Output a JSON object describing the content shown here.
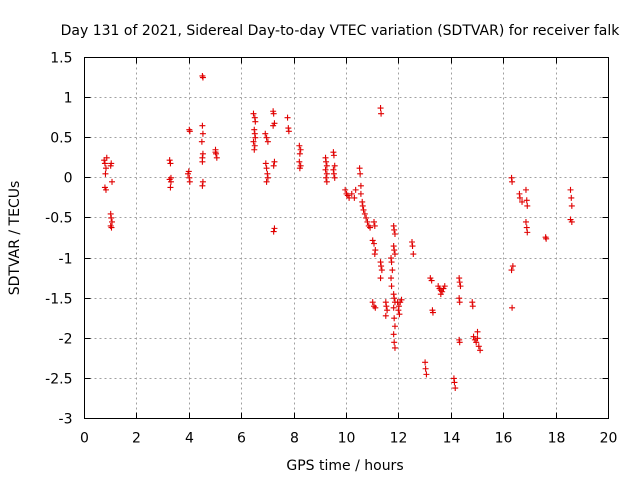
{
  "chart_data": {
    "type": "scatter",
    "title": "Day 131 of 2021, Sidereal Day-to-day VTEC variation (SDTVAR) for receiver falk",
    "xlabel": "GPS time / hours",
    "ylabel": "SDTVAR / TECUs",
    "xlim": [
      0,
      20
    ],
    "ylim": [
      -3,
      1.5
    ],
    "grid": true,
    "marker": "+",
    "marker_color": "#e00000",
    "xticks": [
      0,
      2,
      4,
      6,
      8,
      10,
      12,
      14,
      16,
      18,
      20
    ],
    "xtick_labels": [
      "0",
      "2",
      "4",
      "6",
      "8",
      "10",
      "12",
      "14",
      "16",
      "18",
      "20"
    ],
    "yticks": [
      -3,
      -2.5,
      -2,
      -1.5,
      -1,
      -0.5,
      0,
      0.5,
      1,
      1.5
    ],
    "ytick_labels": [
      "-3",
      "-2.5",
      "-2",
      "-1.5",
      "-1",
      "-0.5",
      "0",
      "0.5",
      "1",
      "1.5"
    ],
    "points": [
      [
        0.75,
        0.22
      ],
      [
        0.78,
        0.18
      ],
      [
        0.8,
        0.05
      ],
      [
        0.82,
        0.12
      ],
      [
        0.78,
        -0.12
      ],
      [
        0.82,
        -0.15
      ],
      [
        0.85,
        0.25
      ],
      [
        1.0,
        0.15
      ],
      [
        1.02,
        0.18
      ],
      [
        1.05,
        -0.05
      ],
      [
        1.0,
        -0.45
      ],
      [
        1.02,
        -0.5
      ],
      [
        1.05,
        -0.55
      ],
      [
        1.0,
        -0.6
      ],
      [
        1.03,
        -0.62
      ],
      [
        3.25,
        0.22
      ],
      [
        3.28,
        0.18
      ],
      [
        3.3,
        0.0
      ],
      [
        3.25,
        -0.02
      ],
      [
        3.3,
        -0.05
      ],
      [
        3.28,
        -0.12
      ],
      [
        3.95,
        0.05
      ],
      [
        4.0,
        0.0
      ],
      [
        4.02,
        -0.05
      ],
      [
        3.98,
        0.08
      ],
      [
        4.0,
        0.6
      ],
      [
        4.02,
        0.58
      ],
      [
        4.5,
        0.65
      ],
      [
        4.52,
        0.55
      ],
      [
        4.48,
        0.45
      ],
      [
        4.5,
        0.25
      ],
      [
        4.52,
        0.3
      ],
      [
        4.5,
        0.2
      ],
      [
        4.52,
        -0.05
      ],
      [
        4.5,
        -0.1
      ],
      [
        4.5,
        1.27
      ],
      [
        4.52,
        1.25
      ],
      [
        5.0,
        0.35
      ],
      [
        5.02,
        0.3
      ],
      [
        5.0,
        0.32
      ],
      [
        5.05,
        0.25
      ],
      [
        6.45,
        0.8
      ],
      [
        6.5,
        0.75
      ],
      [
        6.52,
        0.7
      ],
      [
        6.48,
        0.6
      ],
      [
        6.5,
        0.55
      ],
      [
        6.52,
        0.5
      ],
      [
        6.45,
        0.45
      ],
      [
        6.5,
        0.4
      ],
      [
        6.48,
        0.35
      ],
      [
        6.9,
        0.55
      ],
      [
        6.95,
        0.5
      ],
      [
        7.0,
        0.45
      ],
      [
        6.92,
        0.18
      ],
      [
        6.95,
        0.12
      ],
      [
        6.98,
        0.05
      ],
      [
        7.0,
        0.0
      ],
      [
        6.95,
        -0.05
      ],
      [
        7.2,
        0.83
      ],
      [
        7.22,
        0.8
      ],
      [
        7.25,
        0.68
      ],
      [
        7.2,
        0.65
      ],
      [
        7.25,
        0.2
      ],
      [
        7.22,
        0.15
      ],
      [
        7.25,
        -0.63
      ],
      [
        7.22,
        -0.67
      ],
      [
        7.75,
        0.75
      ],
      [
        7.78,
        0.62
      ],
      [
        7.8,
        0.58
      ],
      [
        8.2,
        0.4
      ],
      [
        8.25,
        0.35
      ],
      [
        8.22,
        0.3
      ],
      [
        8.2,
        0.2
      ],
      [
        8.25,
        0.15
      ],
      [
        8.22,
        0.12
      ],
      [
        9.2,
        0.25
      ],
      [
        9.22,
        0.2
      ],
      [
        9.25,
        0.15
      ],
      [
        9.2,
        0.1
      ],
      [
        9.25,
        0.05
      ],
      [
        9.22,
        0.0
      ],
      [
        9.25,
        -0.05
      ],
      [
        9.5,
        0.32
      ],
      [
        9.52,
        0.28
      ],
      [
        9.55,
        0.15
      ],
      [
        9.5,
        0.1
      ],
      [
        9.52,
        0.05
      ],
      [
        9.55,
        0.0
      ],
      [
        9.95,
        -0.15
      ],
      [
        10.0,
        -0.2
      ],
      [
        10.05,
        -0.22
      ],
      [
        10.1,
        -0.25
      ],
      [
        10.2,
        -0.2
      ],
      [
        10.3,
        -0.25
      ],
      [
        10.35,
        -0.15
      ],
      [
        10.5,
        0.12
      ],
      [
        10.52,
        0.05
      ],
      [
        10.55,
        -0.1
      ],
      [
        10.55,
        -0.2
      ],
      [
        10.6,
        -0.3
      ],
      [
        10.62,
        -0.35
      ],
      [
        10.65,
        -0.4
      ],
      [
        10.7,
        -0.45
      ],
      [
        10.75,
        -0.5
      ],
      [
        10.8,
        -0.55
      ],
      [
        10.85,
        -0.6
      ],
      [
        10.9,
        -0.62
      ],
      [
        11.05,
        -0.55
      ],
      [
        11.08,
        -0.6
      ],
      [
        11.0,
        -0.78
      ],
      [
        11.05,
        -0.82
      ],
      [
        11.1,
        -0.9
      ],
      [
        11.08,
        -0.95
      ],
      [
        11.0,
        -1.55
      ],
      [
        11.05,
        -1.6
      ],
      [
        11.1,
        -1.62
      ],
      [
        11.3,
        0.87
      ],
      [
        11.32,
        0.8
      ],
      [
        11.3,
        -1.05
      ],
      [
        11.32,
        -1.1
      ],
      [
        11.35,
        -1.15
      ],
      [
        11.3,
        -1.25
      ],
      [
        11.5,
        -1.55
      ],
      [
        11.52,
        -1.6
      ],
      [
        11.55,
        -1.65
      ],
      [
        11.5,
        -1.72
      ],
      [
        11.7,
        -1.0
      ],
      [
        11.72,
        -1.05
      ],
      [
        11.75,
        -1.15
      ],
      [
        11.7,
        -1.25
      ],
      [
        11.72,
        -1.35
      ],
      [
        11.8,
        -0.6
      ],
      [
        11.82,
        -0.65
      ],
      [
        11.85,
        -0.7
      ],
      [
        11.8,
        -0.85
      ],
      [
        11.82,
        -0.9
      ],
      [
        11.85,
        -0.95
      ],
      [
        11.8,
        -1.45
      ],
      [
        11.82,
        -1.5
      ],
      [
        11.85,
        -1.55
      ],
      [
        11.8,
        -1.62
      ],
      [
        11.82,
        -1.75
      ],
      [
        11.85,
        -1.85
      ],
      [
        11.8,
        -1.95
      ],
      [
        11.82,
        -2.05
      ],
      [
        11.85,
        -2.12
      ],
      [
        11.95,
        -1.55
      ],
      [
        12.0,
        -1.6
      ],
      [
        12.05,
        -1.55
      ],
      [
        12.1,
        -1.52
      ],
      [
        11.98,
        -1.65
      ],
      [
        12.02,
        -1.7
      ],
      [
        12.5,
        -0.8
      ],
      [
        12.52,
        -0.85
      ],
      [
        12.55,
        -0.95
      ],
      [
        13.0,
        -2.3
      ],
      [
        13.02,
        -2.38
      ],
      [
        13.05,
        -2.45
      ],
      [
        13.2,
        -1.25
      ],
      [
        13.25,
        -1.28
      ],
      [
        13.28,
        -1.65
      ],
      [
        13.3,
        -1.68
      ],
      [
        13.5,
        -1.35
      ],
      [
        13.55,
        -1.38
      ],
      [
        13.6,
        -1.4
      ],
      [
        13.65,
        -1.42
      ],
      [
        13.7,
        -1.38
      ],
      [
        13.75,
        -1.35
      ],
      [
        13.6,
        -1.45
      ],
      [
        14.1,
        -2.5
      ],
      [
        14.12,
        -2.55
      ],
      [
        14.15,
        -2.62
      ],
      [
        14.3,
        -1.25
      ],
      [
        14.32,
        -1.3
      ],
      [
        14.35,
        -1.35
      ],
      [
        14.3,
        -1.5
      ],
      [
        14.32,
        -1.55
      ],
      [
        14.3,
        -2.02
      ],
      [
        14.32,
        -2.05
      ],
      [
        14.8,
        -1.55
      ],
      [
        14.82,
        -1.6
      ],
      [
        14.85,
        -1.98
      ],
      [
        14.9,
        -2.02
      ],
      [
        14.95,
        -2.05
      ],
      [
        15.0,
        -2.0
      ],
      [
        15.05,
        -2.1
      ],
      [
        15.1,
        -2.15
      ],
      [
        15.0,
        -1.92
      ],
      [
        16.3,
        0.0
      ],
      [
        16.32,
        -0.05
      ],
      [
        16.35,
        -1.1
      ],
      [
        16.3,
        -1.15
      ],
      [
        16.32,
        -1.62
      ],
      [
        16.6,
        -0.2
      ],
      [
        16.62,
        -0.25
      ],
      [
        16.7,
        -0.3
      ],
      [
        16.85,
        -0.15
      ],
      [
        16.88,
        -0.28
      ],
      [
        16.9,
        -0.35
      ],
      [
        16.85,
        -0.55
      ],
      [
        16.88,
        -0.62
      ],
      [
        16.9,
        -0.68
      ],
      [
        17.6,
        -0.74
      ],
      [
        17.62,
        -0.76
      ],
      [
        18.55,
        -0.15
      ],
      [
        18.58,
        -0.25
      ],
      [
        18.6,
        -0.35
      ],
      [
        18.55,
        -0.52
      ],
      [
        18.6,
        -0.55
      ]
    ]
  }
}
